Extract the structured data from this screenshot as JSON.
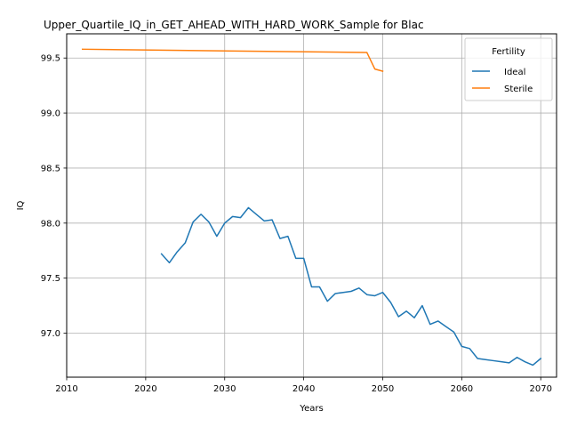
{
  "chart_data": {
    "type": "line",
    "title": "Upper_Quartile_IQ_in_GET_AHEAD_WITH_HARD_WORK_Sample for Blac",
    "xlabel": "Years",
    "ylabel": "IQ",
    "xlim": [
      2010,
      2072
    ],
    "ylim": [
      96.6,
      99.72
    ],
    "xticks": [
      2010,
      2020,
      2030,
      2040,
      2050,
      2060,
      2070
    ],
    "yticks": [
      97.0,
      97.5,
      98.0,
      98.5,
      99.0,
      99.5
    ],
    "xtick_labels": [
      "2010",
      "2020",
      "2030",
      "2040",
      "2050",
      "2060",
      "2070"
    ],
    "ytick_labels": [
      "97.0",
      "97.5",
      "98.0",
      "98.5",
      "99.0",
      "99.5"
    ],
    "grid": true,
    "legend": {
      "title": "Fertility",
      "placement": "top-right"
    },
    "series": [
      {
        "name": "Ideal",
        "color": "#1f77b4",
        "x": [
          2022,
          2023,
          2024,
          2025,
          2026,
          2027,
          2028,
          2029,
          2030,
          2031,
          2032,
          2033,
          2034,
          2035,
          2036,
          2037,
          2038,
          2039,
          2040,
          2041,
          2042,
          2043,
          2044,
          2045,
          2046,
          2047,
          2048,
          2049,
          2050,
          2051,
          2052,
          2053,
          2054,
          2055,
          2056,
          2057,
          2058,
          2059,
          2060,
          2061,
          2062,
          2063,
          2064,
          2065,
          2066,
          2067,
          2068,
          2069,
          2070
        ],
        "values": [
          97.72,
          97.64,
          97.74,
          97.82,
          98.01,
          98.08,
          98.01,
          97.88,
          98.0,
          98.06,
          98.05,
          98.14,
          98.08,
          98.02,
          98.03,
          97.86,
          97.88,
          97.68,
          97.68,
          97.42,
          97.42,
          97.29,
          97.36,
          97.37,
          97.38,
          97.41,
          97.35,
          97.34,
          97.37,
          97.28,
          97.15,
          97.2,
          97.14,
          97.25,
          97.08,
          97.11,
          97.06,
          97.01,
          96.88,
          96.86,
          96.77,
          96.76,
          96.75,
          96.74,
          96.73,
          96.78,
          96.74,
          96.71,
          96.77
        ]
      },
      {
        "name": "Sterile",
        "color": "#ff7f0e",
        "x": [
          2012,
          2048,
          2049,
          2050
        ],
        "values": [
          99.58,
          99.55,
          99.4,
          99.38
        ]
      }
    ]
  }
}
